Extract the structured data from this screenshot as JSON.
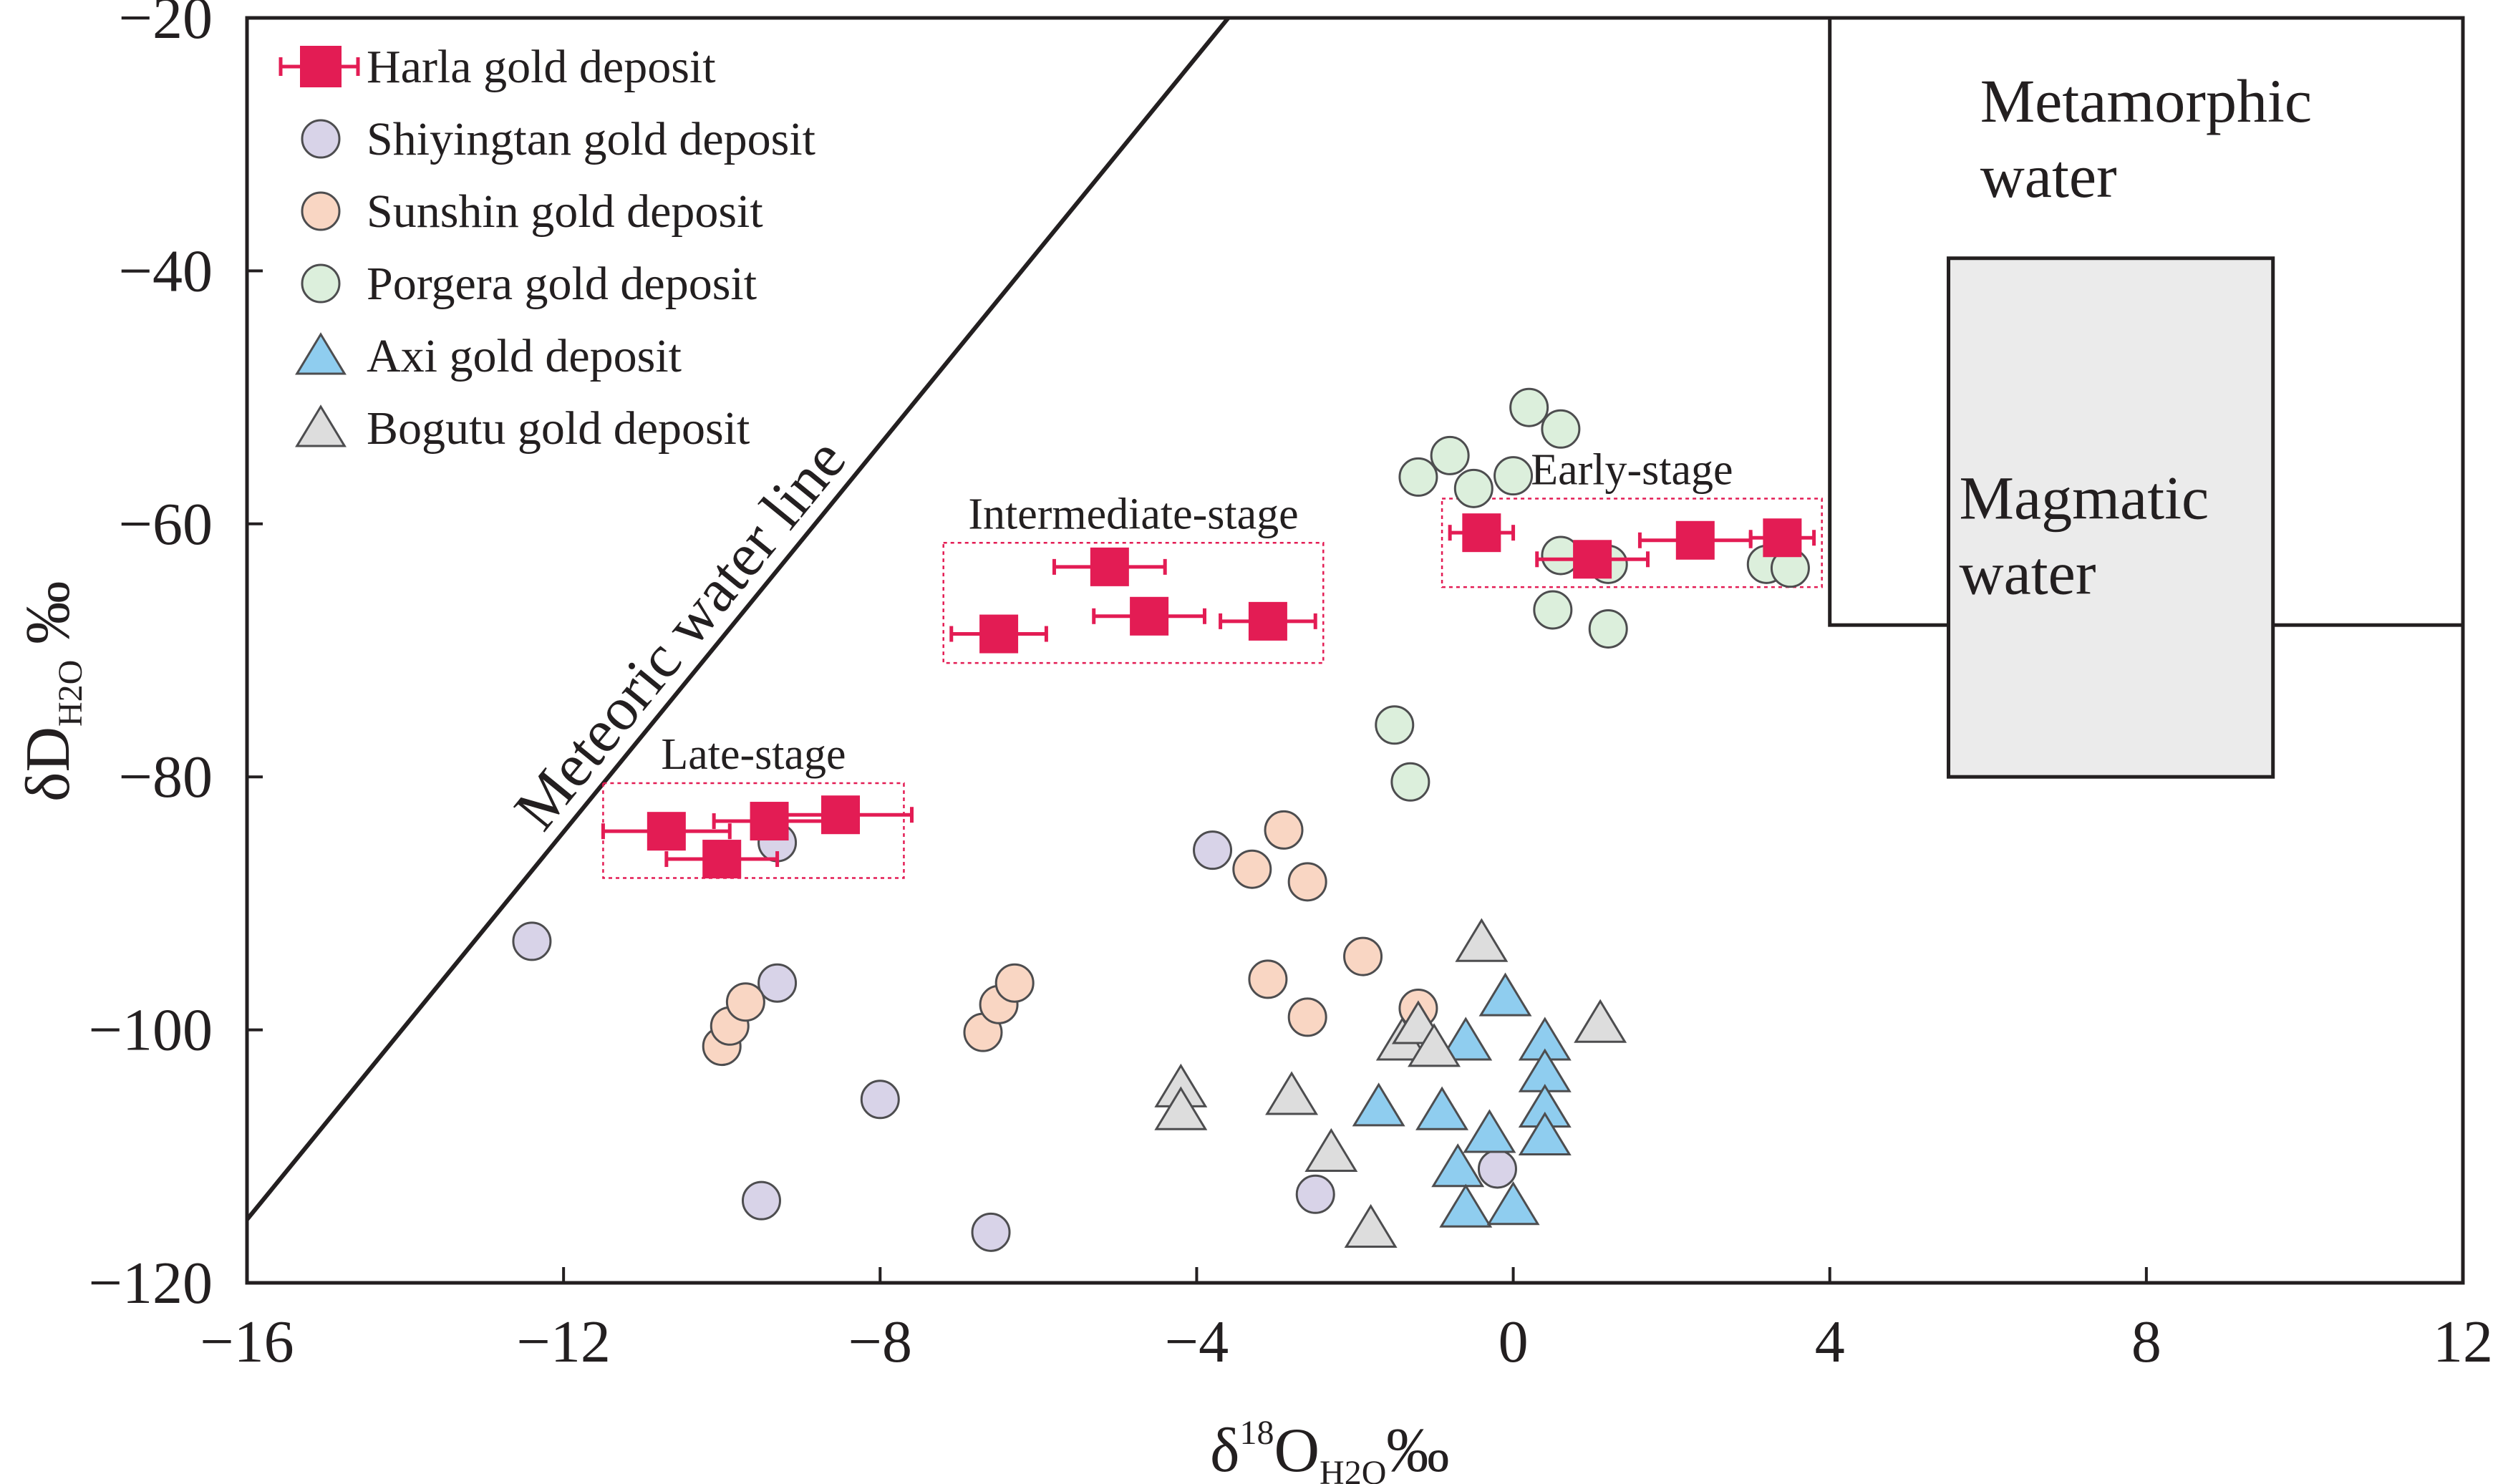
{
  "chart_data": {
    "type": "scatter",
    "xlim": [
      -16,
      12
    ],
    "ylim": [
      -120,
      -20
    ],
    "x_ticks": [
      -16,
      -12,
      -8,
      -4,
      0,
      4,
      8,
      12
    ],
    "y_ticks": [
      -20,
      -40,
      -60,
      -80,
      -100,
      -120
    ],
    "x_tick_labels": [
      "−16",
      "−12",
      "−8",
      "−4",
      "0",
      "4",
      "8",
      "12"
    ],
    "y_tick_labels": [
      "−20",
      "−40",
      "−60",
      "−80",
      "−100",
      "−120"
    ],
    "xlabel": {
      "base": "δ",
      "sup": "18",
      "main": "O",
      "sub": "H2O",
      "unit": "‰"
    },
    "ylabel": {
      "main": "δD",
      "sub": "H2O",
      "unit": " ‰"
    },
    "legend": [
      {
        "label": "Harla  gold deposit",
        "marker": "square-errorbar",
        "color": "#e31c54"
      },
      {
        "label": "Shiyingtan gold deposit",
        "marker": "circle",
        "color": "#d8d3e8"
      },
      {
        "label": "Sunshin gold deposit",
        "marker": "circle",
        "color": "#f9d6c3"
      },
      {
        "label": "Porgera gold deposit",
        "marker": "circle",
        "color": "#dcefdc"
      },
      {
        "label": "Axi gold deposit",
        "marker": "triangle",
        "color": "#8fcdef"
      },
      {
        "label": "Bogutu gold deposit",
        "marker": "triangle",
        "color": "#dddddd"
      }
    ],
    "regions": [
      {
        "name": "metamorphic",
        "lines": [
          "Metamorphic",
          "water"
        ],
        "x": [
          4,
          12
        ],
        "y": [
          -68,
          -20
        ],
        "fill": "#ffffff"
      },
      {
        "name": "magmatic",
        "lines": [
          "Magmatic",
          "water"
        ],
        "x": [
          5.5,
          9.6
        ],
        "y": [
          -80,
          -39
        ],
        "fill": "#ebebeb"
      }
    ],
    "meteoric_line": {
      "label": "Meteoric water line",
      "x": [
        -16,
        -12.6,
        -3.6
      ],
      "y": [
        -115,
        -82.8,
        -20
      ]
    },
    "stage_boxes": [
      {
        "name": "late",
        "label": "Late-stage",
        "x": [
          -11.5,
          -7.7
        ],
        "y": [
          -88,
          -80.5
        ]
      },
      {
        "name": "intermediate",
        "label": "Intermediate-stage",
        "x": [
          -7.2,
          -2.4
        ],
        "y": [
          -71,
          -61.5
        ]
      },
      {
        "name": "early",
        "label": "Early-stage",
        "x": [
          -0.9,
          3.9
        ],
        "y": [
          -65,
          -58
        ]
      }
    ],
    "series": [
      {
        "name": "Harla gold deposit",
        "marker": "square-errorbar",
        "color": "#e31c54",
        "points": [
          {
            "x": -10.7,
            "y": -84.3,
            "xerr": 0.8
          },
          {
            "x": -10.0,
            "y": -86.5,
            "xerr": 0.7
          },
          {
            "x": -9.4,
            "y": -83.5,
            "xerr": 0.7
          },
          {
            "x": -8.5,
            "y": -83.0,
            "xerr": 0.9
          },
          {
            "x": -6.5,
            "y": -68.7,
            "xerr": 0.6
          },
          {
            "x": -5.1,
            "y": -63.4,
            "xerr": 0.7
          },
          {
            "x": -4.6,
            "y": -67.3,
            "xerr": 0.7
          },
          {
            "x": -3.1,
            "y": -67.7,
            "xerr": 0.6
          },
          {
            "x": -0.4,
            "y": -60.7,
            "xerr": 0.4
          },
          {
            "x": 1.0,
            "y": -62.8,
            "xerr": 0.7
          },
          {
            "x": 2.3,
            "y": -61.3,
            "xerr": 0.7
          },
          {
            "x": 3.4,
            "y": -61.1,
            "xerr": 0.4
          }
        ]
      },
      {
        "name": "Shiyingtan gold deposit",
        "marker": "circle",
        "color": "#d8d3e8",
        "points": [
          {
            "x": -12.4,
            "y": -93.0
          },
          {
            "x": -9.3,
            "y": -85.2
          },
          {
            "x": -9.3,
            "y": -96.3
          },
          {
            "x": -9.5,
            "y": -113.5
          },
          {
            "x": -8.0,
            "y": -105.5
          },
          {
            "x": -6.6,
            "y": -116.0
          },
          {
            "x": -3.8,
            "y": -85.8
          },
          {
            "x": -2.5,
            "y": -113.0
          },
          {
            "x": -0.2,
            "y": -111.0
          }
        ]
      },
      {
        "name": "Sunshin gold deposit",
        "marker": "circle",
        "color": "#f9d6c3",
        "points": [
          {
            "x": -10.0,
            "y": -101.3
          },
          {
            "x": -9.9,
            "y": -99.7
          },
          {
            "x": -9.7,
            "y": -97.8
          },
          {
            "x": -6.7,
            "y": -100.2
          },
          {
            "x": -6.5,
            "y": -98.0
          },
          {
            "x": -6.3,
            "y": -96.3
          },
          {
            "x": -3.3,
            "y": -87.3
          },
          {
            "x": -2.9,
            "y": -84.2
          },
          {
            "x": -2.6,
            "y": -88.3
          },
          {
            "x": -3.1,
            "y": -96.0
          },
          {
            "x": -2.6,
            "y": -99.0
          },
          {
            "x": -1.9,
            "y": -94.2
          },
          {
            "x": -1.2,
            "y": -98.3
          }
        ]
      },
      {
        "name": "Porgera gold deposit",
        "marker": "circle",
        "color": "#dcefdc",
        "points": [
          {
            "x": 0.2,
            "y": -50.8
          },
          {
            "x": 0.6,
            "y": -52.5
          },
          {
            "x": -0.8,
            "y": -54.6
          },
          {
            "x": -1.2,
            "y": -56.3
          },
          {
            "x": -0.5,
            "y": -57.2
          },
          {
            "x": 0.0,
            "y": -56.2
          },
          {
            "x": 0.6,
            "y": -62.5
          },
          {
            "x": 1.2,
            "y": -63.2
          },
          {
            "x": 3.2,
            "y": -63.2
          },
          {
            "x": 3.5,
            "y": -63.5
          },
          {
            "x": 0.5,
            "y": -66.8
          },
          {
            "x": 1.2,
            "y": -68.3
          },
          {
            "x": -1.5,
            "y": -75.9
          },
          {
            "x": -1.3,
            "y": -80.4
          }
        ]
      },
      {
        "name": "Axi gold deposit",
        "marker": "triangle",
        "color": "#8fcdef",
        "points": [
          {
            "x": -0.1,
            "y": -97.5
          },
          {
            "x": -0.6,
            "y": -101.0
          },
          {
            "x": 0.4,
            "y": -101.0
          },
          {
            "x": 0.4,
            "y": -103.5
          },
          {
            "x": -1.7,
            "y": -106.2
          },
          {
            "x": -0.9,
            "y": -106.5
          },
          {
            "x": 0.4,
            "y": -106.3
          },
          {
            "x": 0.4,
            "y": -108.5
          },
          {
            "x": -0.3,
            "y": -108.3
          },
          {
            "x": -0.7,
            "y": -111.0
          },
          {
            "x": -0.6,
            "y": -114.2
          },
          {
            "x": 0.0,
            "y": -114.0
          }
        ]
      },
      {
        "name": "Bogutu gold deposit",
        "marker": "triangle",
        "color": "#dddddd",
        "points": [
          {
            "x": -0.4,
            "y": -93.2
          },
          {
            "x": 1.1,
            "y": -99.6
          },
          {
            "x": -1.4,
            "y": -101.0
          },
          {
            "x": -1.2,
            "y": -99.7
          },
          {
            "x": -1.0,
            "y": -101.5
          },
          {
            "x": -4.2,
            "y": -104.7
          },
          {
            "x": -4.2,
            "y": -106.5
          },
          {
            "x": -2.8,
            "y": -105.3
          },
          {
            "x": -2.3,
            "y": -109.8
          },
          {
            "x": -1.8,
            "y": -115.8
          }
        ]
      }
    ]
  }
}
